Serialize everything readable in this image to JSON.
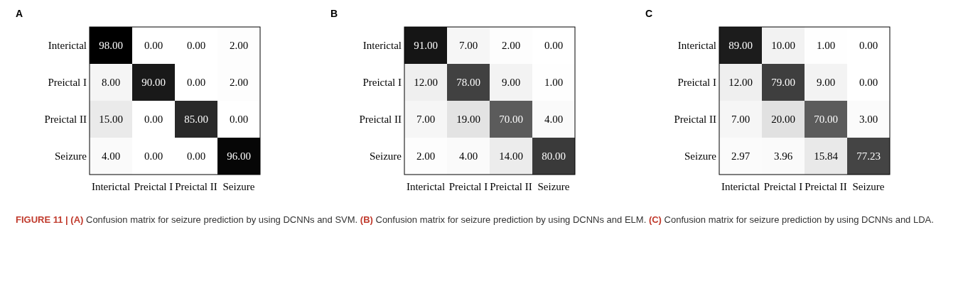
{
  "chart_data": [
    {
      "type": "heatmap",
      "title": "A",
      "categories": [
        "Interictal",
        "Preictal I",
        "Preictal II",
        "Seizure"
      ],
      "y_categories": [
        "Interictal",
        "Preictal I",
        "Preictal II",
        "Seizure"
      ],
      "cells": [
        [
          98.0,
          0.0,
          0.0,
          2.0
        ],
        [
          8.0,
          90.0,
          0.0,
          2.0
        ],
        [
          15.0,
          0.0,
          85.0,
          0.0
        ],
        [
          4.0,
          0.0,
          0.0,
          96.0
        ]
      ],
      "cell_labels": [
        [
          "98.00",
          "0.00",
          "0.00",
          "2.00"
        ],
        [
          "8.00",
          "90.00",
          "0.00",
          "2.00"
        ],
        [
          "15.00",
          "0.00",
          "85.00",
          "0.00"
        ],
        [
          "4.00",
          "0.00",
          "0.00",
          "96.00"
        ]
      ]
    },
    {
      "type": "heatmap",
      "title": "B",
      "categories": [
        "Interictal",
        "Preictal I",
        "Preictal II",
        "Seizure"
      ],
      "y_categories": [
        "Interictal",
        "Preictal I",
        "Preictal II",
        "Seizure"
      ],
      "cells": [
        [
          91.0,
          7.0,
          2.0,
          0.0
        ],
        [
          12.0,
          78.0,
          9.0,
          1.0
        ],
        [
          7.0,
          19.0,
          70.0,
          4.0
        ],
        [
          2.0,
          4.0,
          14.0,
          80.0
        ]
      ],
      "cell_labels": [
        [
          "91.00",
          "7.00",
          "2.00",
          "0.00"
        ],
        [
          "12.00",
          "78.00",
          "9.00",
          "1.00"
        ],
        [
          "7.00",
          "19.00",
          "70.00",
          "4.00"
        ],
        [
          "2.00",
          "4.00",
          "14.00",
          "80.00"
        ]
      ]
    },
    {
      "type": "heatmap",
      "title": "C",
      "categories": [
        "Interictal",
        "Preictal I",
        "Preictal II",
        "Seizure"
      ],
      "y_categories": [
        "Interictal",
        "Preictal I",
        "Preictal II",
        "Seizure"
      ],
      "cells": [
        [
          89.0,
          10.0,
          1.0,
          0.0
        ],
        [
          12.0,
          79.0,
          9.0,
          0.0
        ],
        [
          7.0,
          20.0,
          70.0,
          3.0
        ],
        [
          2.97,
          3.96,
          15.84,
          77.23
        ]
      ],
      "cell_labels": [
        [
          "89.00",
          "10.00",
          "1.00",
          "0.00"
        ],
        [
          "12.00",
          "79.00",
          "9.00",
          "0.00"
        ],
        [
          "7.00",
          "20.00",
          "70.00",
          "3.00"
        ],
        [
          "2.97",
          "3.96",
          "15.84",
          "77.23"
        ]
      ],
      "annotations": [
        "FIGURE 11 | (A) Confusion matrix for seizure prediction by using DCNNs and SVM. (B) Confusion matrix for seizure prediction by using DCNNs and ELM. (C) Confusion matrix for seizure prediction by using DCNNs and LDA."
      ]
    }
  ]
}
